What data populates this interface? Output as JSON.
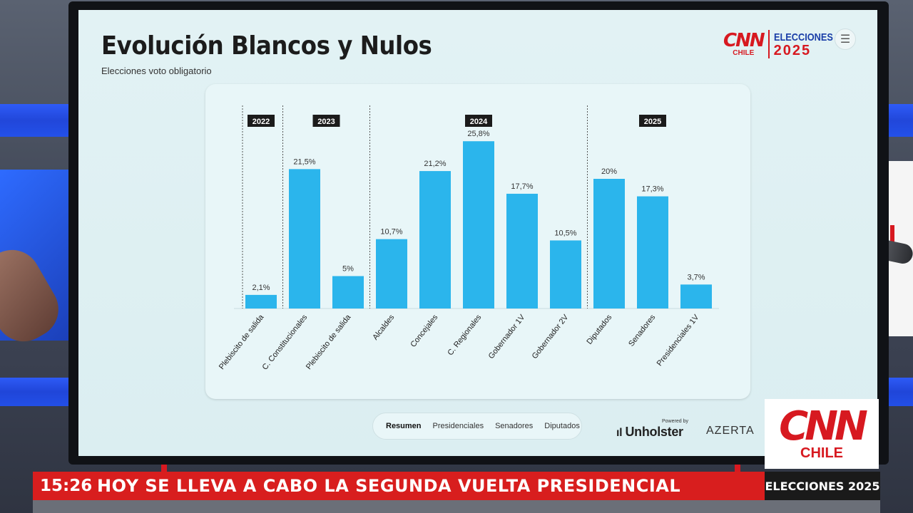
{
  "header": {
    "title": "Evolución Blancos y Nulos",
    "subtitle": "Elecciones voto obligatorio"
  },
  "brand": {
    "cnn": "CNN",
    "chile": "CHILE",
    "elecciones": "ELECCIONES",
    "year": "2025"
  },
  "tabs": [
    {
      "label": "Resumen",
      "active": true
    },
    {
      "label": "Presidenciales",
      "active": false
    },
    {
      "label": "Senadores",
      "active": false
    },
    {
      "label": "Diputados",
      "active": false
    }
  ],
  "sponsors": {
    "powered_by": "Powered by",
    "unholster": "Unholster",
    "azerta": "AZERTA"
  },
  "ticker": {
    "time": "15:26",
    "headline": "HOY SE LLEVA A CABO LA SEGUNDA VUELTA PRESIDENCIAL",
    "tag": "ELECCIONES 2025"
  },
  "logo_big": {
    "cnn": "CNN",
    "chile": "CHILE"
  },
  "colors": {
    "bar": "#2bb5ec",
    "accent_red": "#d71920",
    "year_badge": "#1b1b1b"
  },
  "chart_data": {
    "type": "bar",
    "categories": [
      "Plebiscito de salida",
      "C. Constitucionales",
      "Plebiscito de salida",
      "Alcaldes",
      "Concejales",
      "C. Regionales",
      "Gobernador 1V",
      "Gobernador 2V",
      "Diputados",
      "Senadores",
      "Presidenciales 1V"
    ],
    "values": [
      2.1,
      21.5,
      5,
      10.7,
      21.2,
      25.8,
      17.7,
      10.5,
      20,
      17.3,
      3.7
    ],
    "value_labels": [
      "2,1%",
      "21,5%",
      "5%",
      "10,7%",
      "21,2%",
      "25,8%",
      "17,7%",
      "10,5%",
      "20%",
      "17,3%",
      "3,7%"
    ],
    "groups": [
      {
        "year": "2022",
        "indices": [
          0
        ]
      },
      {
        "year": "2023",
        "indices": [
          1,
          2
        ]
      },
      {
        "year": "2024",
        "indices": [
          3,
          4,
          5,
          6,
          7
        ]
      },
      {
        "year": "2025",
        "indices": [
          8,
          9,
          10
        ]
      }
    ],
    "ylim": [
      0,
      30
    ],
    "grid": false,
    "unit": "%"
  }
}
